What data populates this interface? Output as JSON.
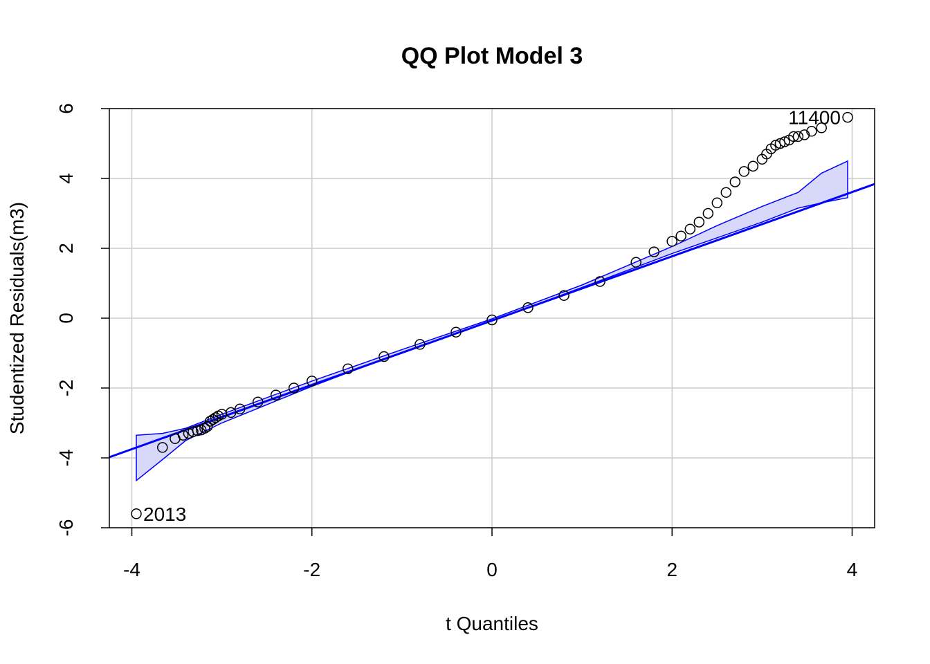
{
  "chart_data": {
    "type": "scatter",
    "title": "QQ Plot Model 3",
    "xlabel": "t Quantiles",
    "ylabel": "Studentized Residuals(m3)",
    "xlim": [
      -4.25,
      4.25
    ],
    "ylim": [
      -6.0,
      6.0
    ],
    "xticks": [
      -4,
      -2,
      0,
      2,
      4
    ],
    "yticks": [
      -6,
      -4,
      -2,
      0,
      2,
      4,
      6
    ],
    "grid": true,
    "colors": {
      "points": "#000000",
      "reference": "#0000ff",
      "band_fill": "#d8d8fa",
      "grid": "#cccccc"
    },
    "reference_line": {
      "intercept": -0.07,
      "slope": 0.92
    },
    "points": {
      "x": [
        -3.95,
        -3.66,
        -3.52,
        -3.43,
        -3.37,
        -3.32,
        -3.27,
        -3.23,
        -3.19,
        -3.16,
        -3.13,
        -3.1,
        -3.07,
        -3.04,
        -3.0,
        -2.9,
        -2.8,
        -2.6,
        -2.4,
        -2.2,
        -2.0,
        -1.6,
        -1.2,
        -0.8,
        -0.4,
        0.0,
        0.4,
        0.8,
        1.2,
        1.6,
        1.8,
        2.0,
        2.1,
        2.2,
        2.3,
        2.4,
        2.5,
        2.6,
        2.7,
        2.8,
        2.9,
        3.0,
        3.05,
        3.1,
        3.15,
        3.2,
        3.25,
        3.3,
        3.35,
        3.4,
        3.47,
        3.55,
        3.66,
        3.95
      ],
      "y": [
        -5.6,
        -3.7,
        -3.45,
        -3.35,
        -3.3,
        -3.25,
        -3.22,
        -3.2,
        -3.15,
        -3.1,
        -2.95,
        -2.9,
        -2.85,
        -2.8,
        -2.75,
        -2.7,
        -2.6,
        -2.4,
        -2.2,
        -2.0,
        -1.8,
        -1.45,
        -1.1,
        -0.75,
        -0.4,
        -0.05,
        0.3,
        0.65,
        1.05,
        1.6,
        1.9,
        2.2,
        2.35,
        2.55,
        2.75,
        3.0,
        3.3,
        3.6,
        3.9,
        4.2,
        4.35,
        4.55,
        4.7,
        4.85,
        4.95,
        5.0,
        5.05,
        5.1,
        5.2,
        5.2,
        5.25,
        5.35,
        5.45,
        5.75
      ]
    },
    "envelope": {
      "x": [
        -3.95,
        -3.66,
        -3.4,
        -3.0,
        -2.0,
        -1.0,
        0.0,
        1.0,
        2.0,
        2.5,
        3.0,
        3.4,
        3.66,
        3.95
      ],
      "upper": [
        -3.35,
        -3.3,
        -3.15,
        -2.75,
        -1.8,
        -0.9,
        -0.02,
        0.95,
        2.05,
        2.65,
        3.2,
        3.6,
        4.15,
        4.5
      ],
      "lower": [
        -4.65,
        -4.05,
        -3.5,
        -3.0,
        -1.95,
        -0.98,
        -0.08,
        0.88,
        1.85,
        2.3,
        2.75,
        3.15,
        3.3,
        3.45
      ]
    },
    "annotations": [
      {
        "label": "11400",
        "x": 3.95,
        "y": 5.75,
        "side": "left"
      },
      {
        "label": "2013",
        "x": -3.95,
        "y": -5.6,
        "side": "right"
      }
    ]
  }
}
